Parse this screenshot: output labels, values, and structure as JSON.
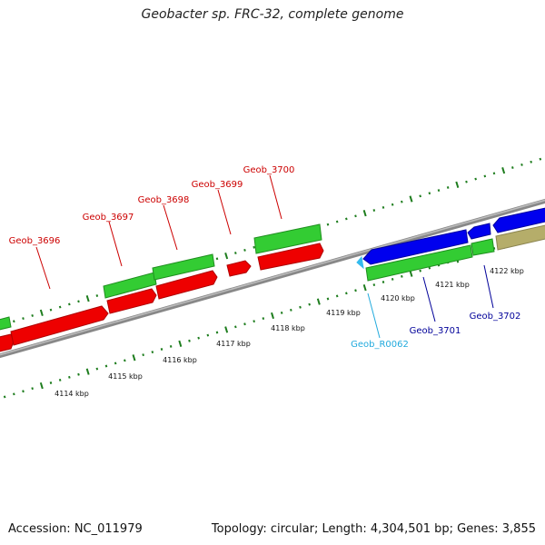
{
  "title": "Geobacter sp. FRC-32, complete genome",
  "accession": "Accession: NC_011979",
  "summary": "Topology: circular; Length: 4,304,501 bp; Genes: 3,855",
  "colors": {
    "red": "#ee0000",
    "red_dark": "#b00000",
    "green": "#33cc33",
    "green_dark": "#1f8f1f",
    "blue": "#0000ee",
    "blue_dark": "#0000a0",
    "khaki": "#b5ad6a",
    "khaki_dark": "#8b8450",
    "cyan": "#33bbee",
    "backbone": "#888888",
    "ruler": "#1e7d1e",
    "label_red": "#cc0000",
    "label_navy": "#000099",
    "label_cyan": "#22aadd"
  },
  "axis": {
    "kbp_labels": [
      "4114 kbp",
      "4115 kbp",
      "4116 kbp",
      "4117 kbp",
      "4118 kbp",
      "4119 kbp",
      "4120 kbp",
      "4121 kbp",
      "4122 kbp"
    ]
  },
  "genes": {
    "top": [
      {
        "name": "Geob_3696"
      },
      {
        "name": "Geob_3697"
      },
      {
        "name": "Geob_3698"
      },
      {
        "name": "Geob_3699"
      },
      {
        "name": "Geob_3700"
      }
    ],
    "bottom": [
      {
        "name": "Geob_R0062"
      },
      {
        "name": "Geob_3701"
      },
      {
        "name": "Geob_3702"
      }
    ]
  }
}
